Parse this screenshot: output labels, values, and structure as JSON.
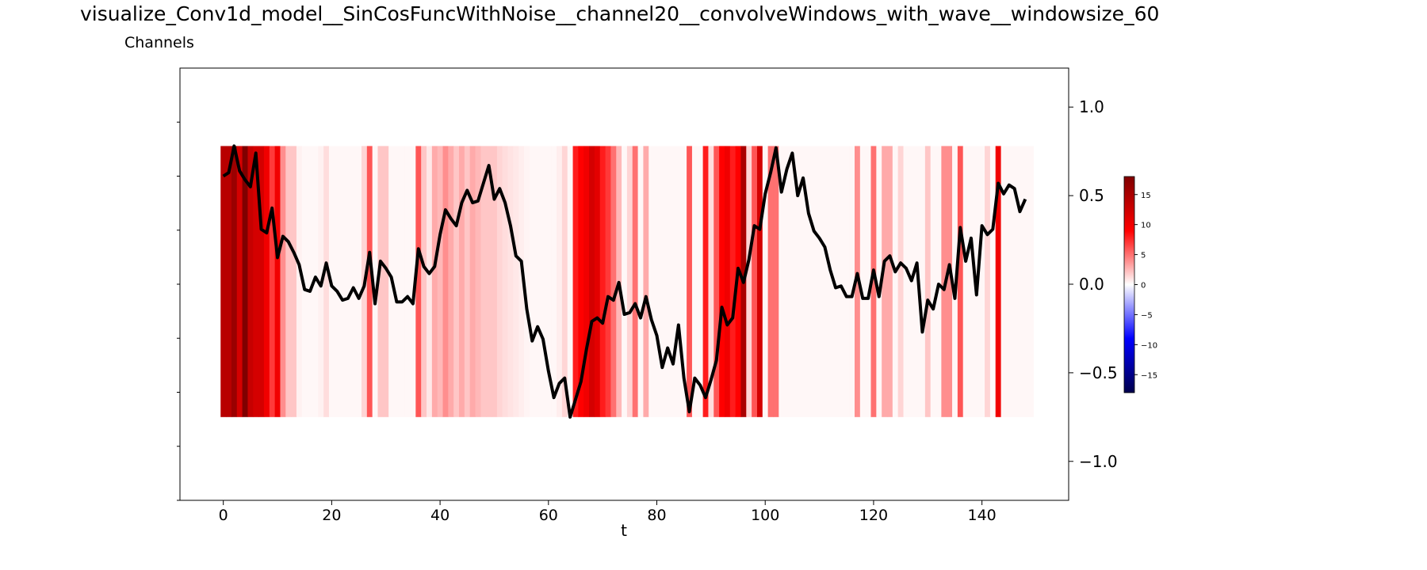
{
  "chart_data": {
    "type": "heatmap",
    "title": "visualize_Conv1d_model__SinCosFuncWithNoise__channel20__convolveWindows_with_wave__windowsize_60",
    "subtitle": "Channels",
    "xlabel": "t",
    "ylabel": "",
    "xlim": [
      -8,
      156
    ],
    "x_ticks": [
      0,
      20,
      40,
      60,
      80,
      100,
      120,
      140
    ],
    "ylim": [
      -1.22,
      1.22
    ],
    "y_ticks": [
      1.0,
      0.5,
      0.0,
      -0.5,
      -1.0
    ],
    "y_tick_labels": [
      "1.0",
      "0.5",
      "0.0",
      "−0.5",
      "−1.0"
    ],
    "y_axis_side": "right",
    "heatmap_band_y": [
      -0.75,
      0.78
    ],
    "heatmap_colormap": "seismic",
    "colorbar": {
      "range": [
        -18,
        18
      ],
      "ticks": [
        15,
        10,
        5,
        0,
        -5,
        -10,
        -15
      ],
      "tick_labels": [
        "15",
        "10",
        "5",
        "0",
        "−5",
        "−10",
        "−15"
      ]
    },
    "heatmap_values": [
      14,
      14,
      16,
      12,
      18,
      13,
      12,
      12,
      10,
      7,
      10,
      4,
      2,
      2,
      0.5,
      0.3,
      0.3,
      0.3,
      0.5,
      1.2,
      0.3,
      0.3,
      0.3,
      0.3,
      0.3,
      0.3,
      1.5,
      6,
      0.3,
      2,
      2,
      0.3,
      0.3,
      0.3,
      0.3,
      0.3,
      6,
      2,
      0.8,
      3,
      2.5,
      4,
      3,
      2,
      3,
      2,
      3,
      2.5,
      2,
      2,
      2,
      1.5,
      1.2,
      1,
      0.8,
      0.6,
      0.4,
      0.3,
      0.3,
      0.3,
      0.3,
      0.3,
      0.6,
      1.5,
      0.3,
      8,
      9,
      10,
      12,
      11,
      8,
      7,
      5,
      2.5,
      0.3,
      1.5,
      5,
      0.3,
      3,
      0.3,
      0.3,
      0.3,
      0.3,
      0.3,
      0.3,
      0.3,
      6,
      0.3,
      0.3,
      8,
      1.2,
      6,
      9,
      10,
      8,
      9,
      15,
      1.5,
      6,
      12,
      0.3,
      5,
      5,
      0.3,
      0.3,
      0.3,
      0.3,
      0.3,
      0.3,
      0.3,
      0.3,
      0.3,
      0.3,
      0.3,
      0.3,
      0.3,
      0.3,
      4,
      0.3,
      0.3,
      5,
      0.3,
      3,
      3,
      0.3,
      1.5,
      0.3,
      0.3,
      0.3,
      0.3,
      2,
      0.3,
      0.3,
      4,
      4,
      0.3,
      6,
      0.3,
      0.3,
      0.3,
      0.3,
      1.5,
      0.3,
      10,
      0.3,
      0.3,
      0.3,
      0.3,
      0.3,
      0.3
    ],
    "series": [
      {
        "type": "line",
        "color": "#000000",
        "y": [
          0.61,
          0.63,
          0.78,
          0.64,
          0.59,
          0.55,
          0.74,
          0.31,
          0.29,
          0.43,
          0.15,
          0.27,
          0.24,
          0.18,
          0.11,
          -0.03,
          -0.04,
          0.04,
          -0.01,
          0.12,
          -0.01,
          -0.04,
          -0.09,
          -0.08,
          -0.02,
          -0.08,
          -0.01,
          0.18,
          -0.11,
          0.13,
          0.09,
          0.04,
          -0.1,
          -0.1,
          -0.07,
          -0.11,
          0.2,
          0.1,
          0.06,
          0.1,
          0.28,
          0.42,
          0.37,
          0.33,
          0.46,
          0.53,
          0.46,
          0.47,
          0.57,
          0.67,
          0.48,
          0.54,
          0.46,
          0.33,
          0.16,
          0.13,
          -0.14,
          -0.32,
          -0.24,
          -0.31,
          -0.49,
          -0.64,
          -0.56,
          -0.53,
          -0.75,
          -0.65,
          -0.55,
          -0.37,
          -0.21,
          -0.19,
          -0.22,
          -0.07,
          -0.09,
          0.01,
          -0.17,
          -0.16,
          -0.11,
          -0.19,
          -0.07,
          -0.2,
          -0.29,
          -0.47,
          -0.36,
          -0.45,
          -0.23,
          -0.53,
          -0.72,
          -0.53,
          -0.57,
          -0.64,
          -0.54,
          -0.43,
          -0.13,
          -0.23,
          -0.19,
          0.09,
          0.01,
          0.14,
          0.33,
          0.31,
          0.51,
          0.63,
          0.77,
          0.52,
          0.65,
          0.74,
          0.5,
          0.6,
          0.4,
          0.3,
          0.26,
          0.21,
          0.08,
          -0.02,
          -0.01,
          -0.07,
          -0.07,
          0.06,
          -0.08,
          -0.08,
          0.08,
          -0.07,
          0.13,
          0.16,
          0.07,
          0.12,
          0.09,
          0.02,
          0.12,
          -0.27,
          -0.09,
          -0.14,
          0.0,
          -0.03,
          0.11,
          -0.08,
          0.32,
          0.13,
          0.26,
          -0.06,
          0.33,
          0.28,
          0.31,
          0.57,
          0.51,
          0.56,
          0.54,
          0.41,
          0.48
        ]
      }
    ],
    "legend": "none",
    "grid": false
  }
}
